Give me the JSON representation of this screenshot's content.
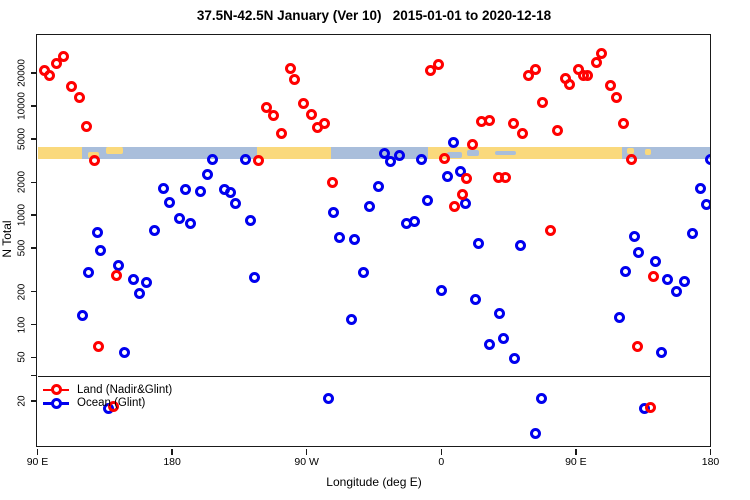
{
  "title": "37.5N-42.5N January (Ver 10)   2015-01-01 to 2020-12-18",
  "colors": {
    "land_series": "#FF0000",
    "ocean_series": "#0000EE",
    "band_land": "#FAD97C",
    "band_ocean": "#A9BEDB",
    "axis": "#1a1a1a",
    "background": "#ffffff"
  },
  "legend": {
    "items": [
      {
        "label": "Land (Nadir&Glint)",
        "color": "#FF0000"
      },
      {
        "label": "Ocean (Glint)",
        "color": "#0000EE"
      }
    ]
  },
  "chart_data": {
    "type": "scatter",
    "title": "37.5N-42.5N January (Ver 10)   2015-01-01 to 2020-12-18",
    "xlabel": "Longitude (deg E)",
    "ylabel": "N Total",
    "x_axis": {
      "unit": "deg E (wrapping eastward from 90E)",
      "start": 90,
      "end": 540,
      "ticks": [
        {
          "label": "90 E",
          "value": 90
        },
        {
          "label": "180",
          "value": 180
        },
        {
          "label": "90 W",
          "value": 270
        },
        {
          "label": "0",
          "value": 360
        },
        {
          "label": "90 E",
          "value": 450
        },
        {
          "label": "180",
          "value": 540
        }
      ]
    },
    "y_axis": {
      "scale": "log10",
      "ticks": [
        "20000",
        "10000",
        "5000",
        "2000",
        "1000",
        "500",
        "200",
        "100",
        "50",
        "20"
      ],
      "tick_values": [
        20000,
        10000,
        5000,
        2000,
        1000,
        500,
        200,
        100,
        50,
        20
      ],
      "range": [
        8,
        35000
      ],
      "separator_value": 40
    },
    "surface_band": {
      "description": "land/ocean strip drawn across the plot at N ~ 3500-4500",
      "value_top": 4500,
      "value_bottom": 3500,
      "land_color": "#FAD97C",
      "ocean_color": "#A9BEDB",
      "segments": [
        {
          "from": 90,
          "to": 120,
          "type": "land"
        },
        {
          "from": 120,
          "to": 237,
          "type": "ocean"
        },
        {
          "from": 237,
          "to": 286,
          "type": "land"
        },
        {
          "from": 286,
          "to": 351,
          "type": "ocean"
        },
        {
          "from": 351,
          "to": 481,
          "type": "land"
        },
        {
          "from": 481,
          "to": 540,
          "type": "ocean"
        }
      ],
      "patches": [
        {
          "from": 124,
          "to": 131,
          "type": "land",
          "top_frac": 0.45,
          "h_frac": 0.55
        },
        {
          "from": 136,
          "to": 147,
          "type": "land",
          "top_frac": 0.0,
          "h_frac": 0.6
        },
        {
          "from": 364,
          "to": 374,
          "type": "ocean",
          "top_frac": 0.4,
          "h_frac": 0.6
        },
        {
          "from": 377,
          "to": 385,
          "type": "ocean",
          "top_frac": 0.3,
          "h_frac": 0.5
        },
        {
          "from": 396,
          "to": 410,
          "type": "ocean",
          "top_frac": 0.35,
          "h_frac": 0.35
        },
        {
          "from": 484,
          "to": 489,
          "type": "land",
          "top_frac": 0.1,
          "h_frac": 0.55
        },
        {
          "from": 496,
          "to": 500,
          "type": "land",
          "top_frac": 0.2,
          "h_frac": 0.5
        }
      ]
    },
    "series": [
      {
        "name": "Land (Nadir&Glint)",
        "color": "#FF0000",
        "marker": "open-circle",
        "points": [
          [
            95,
            21000
          ],
          [
            98,
            18800
          ],
          [
            103,
            24500
          ],
          [
            107.5,
            28500
          ],
          [
            113,
            15000
          ],
          [
            118,
            12000
          ],
          [
            123,
            6500
          ],
          [
            128,
            3150
          ],
          [
            131,
            63
          ],
          [
            140.5,
            17.8
          ],
          [
            143,
            280
          ],
          [
            238,
            3150
          ],
          [
            243,
            9700
          ],
          [
            248,
            8100
          ],
          [
            253,
            5600
          ],
          [
            259,
            22000
          ],
          [
            262,
            17400
          ],
          [
            268,
            10600
          ],
          [
            273,
            8400
          ],
          [
            277,
            6300
          ],
          [
            282,
            6900
          ],
          [
            287,
            2000
          ],
          [
            353,
            21000
          ],
          [
            358,
            24000
          ],
          [
            362,
            3300
          ],
          [
            369,
            1200
          ],
          [
            374,
            1550
          ],
          [
            377,
            2150
          ],
          [
            381,
            4450
          ],
          [
            387,
            7200
          ],
          [
            392,
            7400
          ],
          [
            398,
            2200
          ],
          [
            403,
            2200
          ],
          [
            408,
            6900
          ],
          [
            414,
            5600
          ],
          [
            418,
            18900
          ],
          [
            423,
            21700
          ],
          [
            428,
            10800
          ],
          [
            433,
            730
          ],
          [
            438,
            5900
          ],
          [
            443,
            17900
          ],
          [
            446,
            15800
          ],
          [
            452,
            21500
          ],
          [
            455,
            18900
          ],
          [
            458,
            19100
          ],
          [
            464,
            24700
          ],
          [
            467,
            29900
          ],
          [
            473,
            15400
          ],
          [
            477,
            12000
          ],
          [
            482,
            6900
          ],
          [
            487,
            3200
          ],
          [
            491,
            63
          ],
          [
            500,
            17.5
          ],
          [
            502,
            275
          ]
        ]
      },
      {
        "name": "Ocean (Glint)",
        "color": "#0000EE",
        "marker": "open-circle",
        "points": [
          [
            120,
            120
          ],
          [
            124,
            300
          ],
          [
            130,
            690
          ],
          [
            132,
            475
          ],
          [
            137.5,
            17
          ],
          [
            144,
            350
          ],
          [
            148.5,
            55
          ],
          [
            154,
            256
          ],
          [
            158.5,
            193
          ],
          [
            163,
            244
          ],
          [
            168.5,
            724
          ],
          [
            174,
            1740
          ],
          [
            178,
            1300
          ],
          [
            185,
            925
          ],
          [
            189,
            1710
          ],
          [
            192,
            835
          ],
          [
            199,
            1660
          ],
          [
            204,
            2340
          ],
          [
            207,
            3200
          ],
          [
            215,
            1720
          ],
          [
            219,
            1630
          ],
          [
            222.5,
            1290
          ],
          [
            229,
            3200
          ],
          [
            232.5,
            890
          ],
          [
            235,
            268
          ],
          [
            284.5,
            21
          ],
          [
            288,
            1050
          ],
          [
            292,
            630
          ],
          [
            300,
            110
          ],
          [
            302,
            605
          ],
          [
            308,
            296
          ],
          [
            312,
            1190
          ],
          [
            318,
            1840
          ],
          [
            322,
            3700
          ],
          [
            326,
            3100
          ],
          [
            332,
            3500
          ],
          [
            337,
            845
          ],
          [
            342,
            870
          ],
          [
            347,
            3200
          ],
          [
            351,
            1370
          ],
          [
            360,
            203
          ],
          [
            364,
            2280
          ],
          [
            368,
            4600
          ],
          [
            373,
            2500
          ],
          [
            376,
            1290
          ],
          [
            383,
            168
          ],
          [
            385,
            550
          ],
          [
            392,
            65
          ],
          [
            399,
            127
          ],
          [
            401.5,
            74
          ],
          [
            409,
            49
          ],
          [
            413,
            533
          ],
          [
            423,
            10
          ],
          [
            427,
            21
          ],
          [
            479,
            117
          ],
          [
            483,
            304
          ],
          [
            489.5,
            645
          ],
          [
            492,
            460
          ],
          [
            496,
            17
          ],
          [
            503.5,
            376
          ],
          [
            507,
            55
          ],
          [
            511,
            258
          ],
          [
            517,
            201
          ],
          [
            522.5,
            248
          ],
          [
            528,
            680
          ],
          [
            533,
            1770
          ],
          [
            537,
            1255
          ],
          [
            540,
            3250
          ]
        ]
      }
    ]
  }
}
